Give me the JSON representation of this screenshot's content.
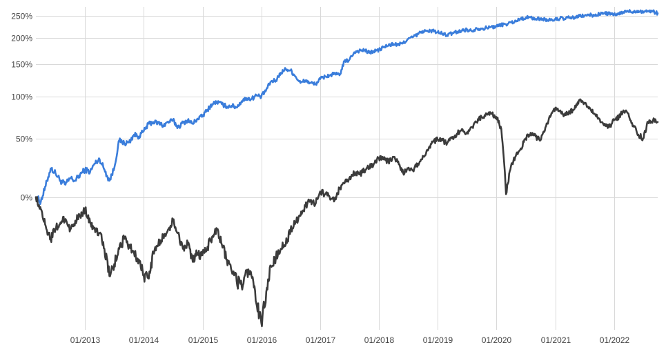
{
  "chart_data": {
    "type": "line",
    "title": "",
    "xlabel": "",
    "ylabel": "",
    "y_scale": "log(1+r)",
    "ylim": [
      -0.6,
      2.7
    ],
    "y_ticks": [
      {
        "value": 0,
        "label": "0%"
      },
      {
        "value": 0.5,
        "label": "50%"
      },
      {
        "value": 1.0,
        "label": "100%"
      },
      {
        "value": 1.5,
        "label": "150%"
      },
      {
        "value": 2.0,
        "label": "200%"
      },
      {
        "value": 2.5,
        "label": "250%"
      }
    ],
    "x_range": [
      "2012-03-01",
      "2022-09-30"
    ],
    "x_ticks": [
      {
        "date": "2013-01-01",
        "label": "01/2013"
      },
      {
        "date": "2014-01-01",
        "label": "01/2014"
      },
      {
        "date": "2015-01-01",
        "label": "01/2015"
      },
      {
        "date": "2016-01-01",
        "label": "01/2016"
      },
      {
        "date": "2017-01-01",
        "label": "01/2017"
      },
      {
        "date": "2018-01-01",
        "label": "01/2018"
      },
      {
        "date": "2019-01-01",
        "label": "01/2019"
      },
      {
        "date": "2020-01-01",
        "label": "01/2020"
      },
      {
        "date": "2021-01-01",
        "label": "01/2021"
      },
      {
        "date": "2022-01-01",
        "label": "01/2022"
      }
    ],
    "grid": true,
    "series": [
      {
        "color": "#3a7ddb",
        "points": [
          [
            "2012-03-01",
            0.0
          ],
          [
            "2012-04-01",
            -0.03
          ],
          [
            "2012-05-01",
            0.08
          ],
          [
            "2012-06-01",
            0.22
          ],
          [
            "2012-07-01",
            0.18
          ],
          [
            "2012-08-01",
            0.12
          ],
          [
            "2012-09-01",
            0.09
          ],
          [
            "2012-10-01",
            0.14
          ],
          [
            "2012-11-01",
            0.12
          ],
          [
            "2012-12-01",
            0.17
          ],
          [
            "2013-01-01",
            0.21
          ],
          [
            "2013-02-01",
            0.19
          ],
          [
            "2013-03-01",
            0.26
          ],
          [
            "2013-04-01",
            0.3
          ],
          [
            "2013-05-01",
            0.21
          ],
          [
            "2013-06-01",
            0.12
          ],
          [
            "2013-07-01",
            0.22
          ],
          [
            "2013-08-01",
            0.48
          ],
          [
            "2013-09-01",
            0.45
          ],
          [
            "2013-10-01",
            0.46
          ],
          [
            "2013-11-01",
            0.54
          ],
          [
            "2013-12-01",
            0.52
          ],
          [
            "2014-01-01",
            0.58
          ],
          [
            "2014-02-01",
            0.66
          ],
          [
            "2014-03-01",
            0.68
          ],
          [
            "2014-04-01",
            0.67
          ],
          [
            "2014-05-01",
            0.64
          ],
          [
            "2014-06-01",
            0.68
          ],
          [
            "2014-07-01",
            0.7
          ],
          [
            "2014-08-01",
            0.62
          ],
          [
            "2014-09-01",
            0.67
          ],
          [
            "2014-10-01",
            0.7
          ],
          [
            "2014-11-01",
            0.66
          ],
          [
            "2014-12-01",
            0.72
          ],
          [
            "2015-01-01",
            0.75
          ],
          [
            "2015-02-01",
            0.83
          ],
          [
            "2015-03-01",
            0.9
          ],
          [
            "2015-04-01",
            0.93
          ],
          [
            "2015-05-01",
            0.9
          ],
          [
            "2015-06-01",
            0.87
          ],
          [
            "2015-07-01",
            0.88
          ],
          [
            "2015-08-01",
            0.86
          ],
          [
            "2015-09-01",
            0.94
          ],
          [
            "2015-10-01",
            0.98
          ],
          [
            "2015-11-01",
            0.97
          ],
          [
            "2015-12-01",
            1.02
          ],
          [
            "2016-01-01",
            1.0
          ],
          [
            "2016-02-01",
            1.1
          ],
          [
            "2016-03-01",
            1.22
          ],
          [
            "2016-04-01",
            1.24
          ],
          [
            "2016-05-01",
            1.36
          ],
          [
            "2016-06-01",
            1.42
          ],
          [
            "2016-07-01",
            1.4
          ],
          [
            "2016-08-01",
            1.3
          ],
          [
            "2016-09-01",
            1.2
          ],
          [
            "2016-10-01",
            1.24
          ],
          [
            "2016-11-01",
            1.2
          ],
          [
            "2016-12-01",
            1.18
          ],
          [
            "2017-01-01",
            1.26
          ],
          [
            "2017-02-01",
            1.3
          ],
          [
            "2017-03-01",
            1.32
          ],
          [
            "2017-04-01",
            1.34
          ],
          [
            "2017-05-01",
            1.32
          ],
          [
            "2017-06-01",
            1.55
          ],
          [
            "2017-07-01",
            1.58
          ],
          [
            "2017-08-01",
            1.72
          ],
          [
            "2017-09-01",
            1.75
          ],
          [
            "2017-10-01",
            1.76
          ],
          [
            "2017-11-01",
            1.71
          ],
          [
            "2017-12-01",
            1.74
          ],
          [
            "2018-01-01",
            1.76
          ],
          [
            "2018-02-01",
            1.82
          ],
          [
            "2018-03-01",
            1.85
          ],
          [
            "2018-04-01",
            1.88
          ],
          [
            "2018-05-01",
            1.86
          ],
          [
            "2018-06-01",
            1.9
          ],
          [
            "2018-07-01",
            1.98
          ],
          [
            "2018-08-01",
            2.02
          ],
          [
            "2018-09-01",
            2.08
          ],
          [
            "2018-10-01",
            2.15
          ],
          [
            "2018-11-01",
            2.14
          ],
          [
            "2018-12-01",
            2.16
          ],
          [
            "2019-01-01",
            2.12
          ],
          [
            "2019-02-01",
            2.09
          ],
          [
            "2019-03-01",
            2.06
          ],
          [
            "2019-04-01",
            2.1
          ],
          [
            "2019-05-01",
            2.13
          ],
          [
            "2019-06-01",
            2.16
          ],
          [
            "2019-07-01",
            2.18
          ],
          [
            "2019-08-01",
            2.15
          ],
          [
            "2019-09-01",
            2.21
          ],
          [
            "2019-10-01",
            2.2
          ],
          [
            "2019-11-01",
            2.22
          ],
          [
            "2019-12-01",
            2.24
          ],
          [
            "2020-01-01",
            2.25
          ],
          [
            "2020-02-01",
            2.29
          ],
          [
            "2020-03-01",
            2.3
          ],
          [
            "2020-04-01",
            2.34
          ],
          [
            "2020-05-01",
            2.37
          ],
          [
            "2020-06-01",
            2.43
          ],
          [
            "2020-07-01",
            2.45
          ],
          [
            "2020-08-01",
            2.46
          ],
          [
            "2020-09-01",
            2.42
          ],
          [
            "2020-10-01",
            2.43
          ],
          [
            "2020-11-01",
            2.41
          ],
          [
            "2020-12-01",
            2.39
          ],
          [
            "2021-01-01",
            2.41
          ],
          [
            "2021-02-01",
            2.44
          ],
          [
            "2021-03-01",
            2.42
          ],
          [
            "2021-04-01",
            2.46
          ],
          [
            "2021-05-01",
            2.45
          ],
          [
            "2021-06-01",
            2.49
          ],
          [
            "2021-07-01",
            2.5
          ],
          [
            "2021-08-01",
            2.52
          ],
          [
            "2021-09-01",
            2.5
          ],
          [
            "2021-10-01",
            2.54
          ],
          [
            "2021-11-01",
            2.56
          ],
          [
            "2021-12-01",
            2.55
          ],
          [
            "2022-01-01",
            2.52
          ],
          [
            "2022-02-01",
            2.54
          ],
          [
            "2022-03-01",
            2.59
          ],
          [
            "2022-04-01",
            2.61
          ],
          [
            "2022-05-01",
            2.6
          ],
          [
            "2022-06-01",
            2.62
          ],
          [
            "2022-07-01",
            2.6
          ],
          [
            "2022-08-01",
            2.62
          ],
          [
            "2022-09-01",
            2.6
          ],
          [
            "2022-09-30",
            2.56
          ]
        ]
      },
      {
        "color": "#3b3b3b",
        "points": [
          [
            "2012-03-01",
            0.0
          ],
          [
            "2012-04-01",
            -0.08
          ],
          [
            "2012-05-01",
            -0.18
          ],
          [
            "2012-06-01",
            -0.25
          ],
          [
            "2012-07-01",
            -0.2
          ],
          [
            "2012-08-01",
            -0.16
          ],
          [
            "2012-09-01",
            -0.14
          ],
          [
            "2012-10-01",
            -0.2
          ],
          [
            "2012-11-01",
            -0.15
          ],
          [
            "2012-12-01",
            -0.12
          ],
          [
            "2013-01-01",
            -0.08
          ],
          [
            "2013-02-01",
            -0.16
          ],
          [
            "2013-03-01",
            -0.19
          ],
          [
            "2013-04-01",
            -0.22
          ],
          [
            "2013-05-01",
            -0.3
          ],
          [
            "2013-06-01",
            -0.42
          ],
          [
            "2013-07-01",
            -0.37
          ],
          [
            "2013-08-01",
            -0.3
          ],
          [
            "2013-09-01",
            -0.25
          ],
          [
            "2013-10-01",
            -0.28
          ],
          [
            "2013-11-01",
            -0.32
          ],
          [
            "2013-12-01",
            -0.35
          ],
          [
            "2014-01-01",
            -0.42
          ],
          [
            "2014-02-01",
            -0.43
          ],
          [
            "2014-03-01",
            -0.32
          ],
          [
            "2014-04-01",
            -0.28
          ],
          [
            "2014-05-01",
            -0.24
          ],
          [
            "2014-06-01",
            -0.2
          ],
          [
            "2014-07-01",
            -0.15
          ],
          [
            "2014-08-01",
            -0.22
          ],
          [
            "2014-09-01",
            -0.3
          ],
          [
            "2014-10-01",
            -0.28
          ],
          [
            "2014-11-01",
            -0.36
          ],
          [
            "2014-12-01",
            -0.32
          ],
          [
            "2015-01-01",
            -0.33
          ],
          [
            "2015-02-01",
            -0.29
          ],
          [
            "2015-03-01",
            -0.24
          ],
          [
            "2015-04-01",
            -0.2
          ],
          [
            "2015-05-01",
            -0.28
          ],
          [
            "2015-06-01",
            -0.35
          ],
          [
            "2015-07-01",
            -0.4
          ],
          [
            "2015-08-01",
            -0.44
          ],
          [
            "2015-09-01",
            -0.46
          ],
          [
            "2015-10-01",
            -0.4
          ],
          [
            "2015-11-01",
            -0.42
          ],
          [
            "2015-12-01",
            -0.52
          ],
          [
            "2016-01-01",
            -0.58
          ],
          [
            "2016-02-01",
            -0.48
          ],
          [
            "2016-03-01",
            -0.38
          ],
          [
            "2016-04-01",
            -0.34
          ],
          [
            "2016-05-01",
            -0.3
          ],
          [
            "2016-06-01",
            -0.28
          ],
          [
            "2016-07-01",
            -0.2
          ],
          [
            "2016-08-01",
            -0.16
          ],
          [
            "2016-09-01",
            -0.12
          ],
          [
            "2016-10-01",
            -0.06
          ],
          [
            "2016-11-01",
            -0.02
          ],
          [
            "2016-12-01",
            -0.05
          ],
          [
            "2017-01-01",
            0.04
          ],
          [
            "2017-02-01",
            0.02
          ],
          [
            "2017-03-01",
            0.0
          ],
          [
            "2017-04-01",
            -0.02
          ],
          [
            "2017-05-01",
            0.06
          ],
          [
            "2017-06-01",
            0.1
          ],
          [
            "2017-07-01",
            0.14
          ],
          [
            "2017-08-01",
            0.18
          ],
          [
            "2017-09-01",
            0.17
          ],
          [
            "2017-10-01",
            0.2
          ],
          [
            "2017-11-01",
            0.23
          ],
          [
            "2017-12-01",
            0.26
          ],
          [
            "2018-01-01",
            0.31
          ],
          [
            "2018-02-01",
            0.3
          ],
          [
            "2018-03-01",
            0.28
          ],
          [
            "2018-04-01",
            0.32
          ],
          [
            "2018-05-01",
            0.28
          ],
          [
            "2018-06-01",
            0.18
          ],
          [
            "2018-07-01",
            0.22
          ],
          [
            "2018-08-01",
            0.2
          ],
          [
            "2018-09-01",
            0.26
          ],
          [
            "2018-10-01",
            0.33
          ],
          [
            "2018-11-01",
            0.38
          ],
          [
            "2018-12-01",
            0.46
          ],
          [
            "2019-01-01",
            0.49
          ],
          [
            "2019-02-01",
            0.48
          ],
          [
            "2019-03-01",
            0.45
          ],
          [
            "2019-04-01",
            0.5
          ],
          [
            "2019-05-01",
            0.55
          ],
          [
            "2019-06-01",
            0.6
          ],
          [
            "2019-07-01",
            0.56
          ],
          [
            "2019-08-01",
            0.62
          ],
          [
            "2019-09-01",
            0.68
          ],
          [
            "2019-10-01",
            0.74
          ],
          [
            "2019-11-01",
            0.77
          ],
          [
            "2019-12-01",
            0.78
          ],
          [
            "2020-01-01",
            0.74
          ],
          [
            "2020-02-01",
            0.6
          ],
          [
            "2020-03-01",
            0.02
          ],
          [
            "2020-04-01",
            0.24
          ],
          [
            "2020-05-01",
            0.33
          ],
          [
            "2020-06-01",
            0.4
          ],
          [
            "2020-07-01",
            0.5
          ],
          [
            "2020-08-01",
            0.56
          ],
          [
            "2020-09-01",
            0.52
          ],
          [
            "2020-10-01",
            0.48
          ],
          [
            "2020-11-01",
            0.62
          ],
          [
            "2020-12-01",
            0.74
          ],
          [
            "2021-01-01",
            0.85
          ],
          [
            "2021-02-01",
            0.82
          ],
          [
            "2021-03-01",
            0.76
          ],
          [
            "2021-04-01",
            0.8
          ],
          [
            "2021-05-01",
            0.84
          ],
          [
            "2021-06-01",
            0.95
          ],
          [
            "2021-07-01",
            0.92
          ],
          [
            "2021-08-01",
            0.86
          ],
          [
            "2021-09-01",
            0.78
          ],
          [
            "2021-10-01",
            0.72
          ],
          [
            "2021-11-01",
            0.64
          ],
          [
            "2021-12-01",
            0.62
          ],
          [
            "2022-01-01",
            0.7
          ],
          [
            "2022-02-01",
            0.74
          ],
          [
            "2022-03-01",
            0.82
          ],
          [
            "2022-04-01",
            0.78
          ],
          [
            "2022-05-01",
            0.64
          ],
          [
            "2022-06-01",
            0.54
          ],
          [
            "2022-07-01",
            0.5
          ],
          [
            "2022-08-01",
            0.68
          ],
          [
            "2022-09-01",
            0.7
          ],
          [
            "2022-09-30",
            0.68
          ]
        ]
      }
    ]
  }
}
